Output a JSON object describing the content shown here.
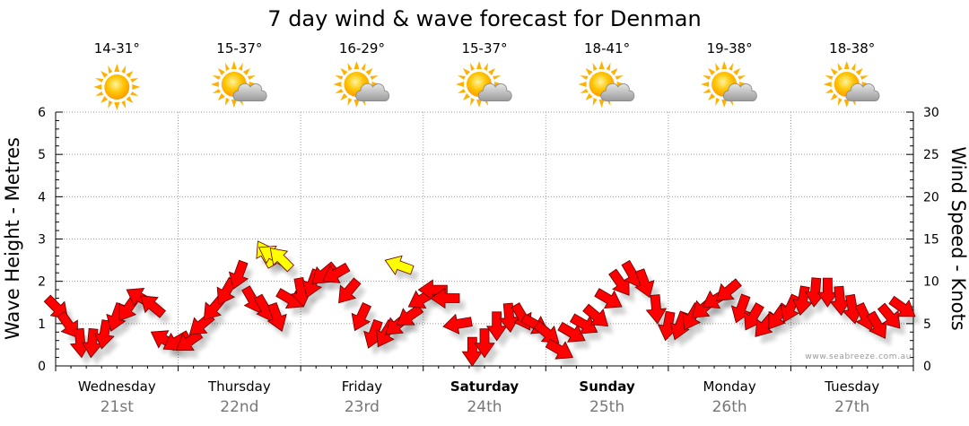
{
  "title": "7 day wind & wave forecast for Denman",
  "credit": "www.seabreeze.com.au",
  "days": [
    {
      "name": "Wednesday",
      "date": "21st",
      "bold": false,
      "temp": "14-31°",
      "icon": "sun-icon"
    },
    {
      "name": "Thursday",
      "date": "22nd",
      "bold": false,
      "temp": "15-37°",
      "icon": "sun-cloud-icon"
    },
    {
      "name": "Friday",
      "date": "23rd",
      "bold": false,
      "temp": "16-29°",
      "icon": "sun-cloud-icon"
    },
    {
      "name": "Saturday",
      "date": "24th",
      "bold": true,
      "temp": "15-37°",
      "icon": "sun-cloud-icon"
    },
    {
      "name": "Sunday",
      "date": "25th",
      "bold": true,
      "temp": "18-41°",
      "icon": "sun-cloud-icon"
    },
    {
      "name": "Monday",
      "date": "26th",
      "bold": false,
      "temp": "19-38°",
      "icon": "sun-cloud-icon"
    },
    {
      "name": "Tuesday",
      "date": "27th",
      "bold": false,
      "temp": "18-38°",
      "icon": "sun-cloud-icon"
    }
  ],
  "colors": {
    "wind_arrow": "#ff0000",
    "gust_arrow": "#ffff00",
    "arrow_stroke": "#660000",
    "sun": "#ffb800",
    "cloud": "#b5b5b5"
  },
  "chart_data": {
    "type": "scatter",
    "title": "7 day wind & wave forecast for Denman",
    "y_left_label": "Wave Height - Metres",
    "y_right_label": "Wind Speed - Knots",
    "y_left_range": [
      0,
      6
    ],
    "y_left_ticks": [
      "0",
      "1",
      "2",
      "3",
      "4",
      "5",
      "6"
    ],
    "y_right_range": [
      0,
      30
    ],
    "y_right_ticks": [
      "0",
      "5",
      "10",
      "15",
      "20",
      "25",
      "30"
    ],
    "x_range_days": [
      0,
      7
    ],
    "grid": true,
    "series": [
      {
        "marker": "arrow",
        "note": "arrows plotted by wind speed (knots); angle = wind direction (degrees, 0 = arrow pointing up)",
        "x": [
          0.0,
          0.1,
          0.2,
          0.3,
          0.4,
          0.5,
          0.6,
          0.7,
          0.8,
          0.9,
          1.0,
          1.1,
          1.2,
          1.3,
          1.4,
          1.5,
          1.6,
          1.7,
          1.8,
          1.9,
          2.0,
          2.1,
          2.2,
          2.3,
          2.4,
          2.5,
          2.6,
          2.7,
          2.8,
          2.9,
          3.0,
          3.1,
          3.2,
          3.3,
          3.4,
          3.5,
          3.6,
          3.7,
          3.8,
          3.9,
          4.0,
          4.1,
          4.2,
          4.3,
          4.4,
          4.5,
          4.6,
          4.7,
          4.8,
          4.9,
          5.0,
          5.1,
          5.2,
          5.3,
          5.4,
          5.5,
          5.6,
          5.7,
          5.8,
          5.9,
          6.0,
          6.1,
          6.2,
          6.3,
          6.4,
          6.5,
          6.6,
          6.7,
          6.8,
          6.9
        ],
        "y": [
          7,
          5,
          3,
          3,
          4,
          6,
          7,
          8,
          7,
          3,
          3,
          3,
          5,
          7,
          9,
          11,
          8,
          7,
          6,
          8,
          9,
          10,
          11,
          11,
          9,
          6,
          4,
          4,
          5,
          6,
          8,
          9,
          8,
          5,
          2,
          3,
          5,
          6,
          6,
          5,
          4,
          2,
          4,
          5,
          6,
          8,
          10,
          11,
          10,
          7,
          5,
          5,
          6,
          7,
          8,
          9,
          7,
          6,
          5,
          6,
          7,
          8,
          9,
          9,
          8,
          7,
          6,
          5,
          6,
          7
        ],
        "angle": [
          135,
          145,
          175,
          185,
          190,
          200,
          215,
          300,
          310,
          300,
          240,
          235,
          230,
          220,
          210,
          200,
          150,
          150,
          160,
          120,
          170,
          200,
          230,
          240,
          220,
          205,
          200,
          210,
          230,
          235,
          240,
          270,
          270,
          260,
          180,
          180,
          180,
          175,
          150,
          120,
          130,
          120,
          120,
          120,
          130,
          120,
          145,
          150,
          160,
          175,
          190,
          200,
          210,
          230,
          240,
          230,
          200,
          210,
          220,
          215,
          205,
          190,
          185,
          180,
          175,
          170,
          155,
          150,
          140,
          125
        ]
      },
      {
        "marker": "arrow",
        "name": "",
        "x": [
          1.72,
          1.78,
          1.85,
          2.82
        ],
        "y": [
          13,
          13,
          12.5,
          11.8
        ],
        "angle": [
          330,
          300,
          315,
          290
        ]
      }
    ]
  }
}
